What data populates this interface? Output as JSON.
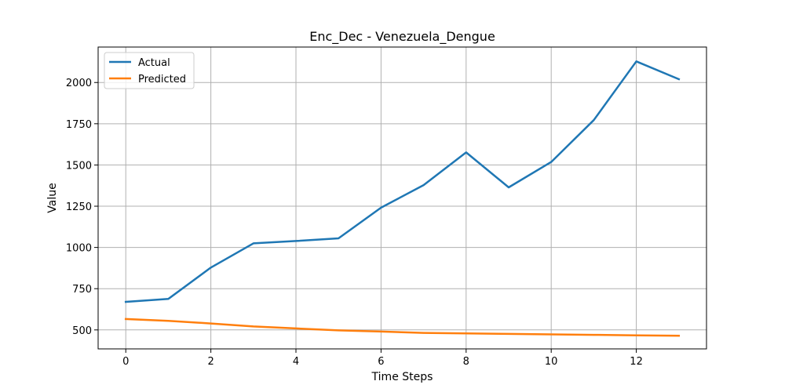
{
  "chart_data": {
    "type": "line",
    "title": "Enc_Dec - Venezuela_Dengue",
    "xlabel": "Time Steps",
    "ylabel": "Value",
    "x": [
      0,
      1,
      2,
      3,
      4,
      5,
      6,
      7,
      8,
      9,
      10,
      11,
      12,
      13
    ],
    "xlim": [
      -0.65,
      13.65
    ],
    "ylim": [
      385,
      2215
    ],
    "x_ticks": [
      0,
      2,
      4,
      6,
      8,
      10,
      12
    ],
    "y_ticks": [
      500,
      750,
      1000,
      1250,
      1500,
      1750,
      2000
    ],
    "grid": true,
    "legend_position": "top-left",
    "series": [
      {
        "name": "Actual",
        "color": "#1f77b4",
        "values": [
          670,
          688,
          878,
          1025,
          1039,
          1055,
          1241,
          1378,
          1576,
          1364,
          1518,
          1772,
          2128,
          2020
        ]
      },
      {
        "name": "Predicted",
        "color": "#ff7f0e",
        "values": [
          566,
          555,
          539,
          521,
          509,
          497,
          490,
          482,
          479,
          476,
          473,
          470,
          467,
          465
        ]
      }
    ]
  }
}
